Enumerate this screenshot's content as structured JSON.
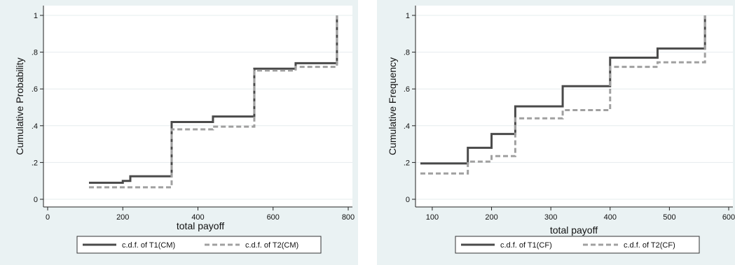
{
  "chart_data": [
    {
      "type": "line",
      "title": "",
      "xlabel": "total payoff",
      "ylabel": "Cumulative Probability",
      "xlim": [
        0,
        800
      ],
      "ylim": [
        0,
        1
      ],
      "xticks": [
        "0",
        "200",
        "400",
        "600",
        "800"
      ],
      "yticks": [
        "0",
        ".2",
        ".4",
        ".6",
        ".8",
        "1"
      ],
      "grid": "horizontal",
      "legend_position": "bottom",
      "series": [
        {
          "name": "c.d.f. of  T1(CM)",
          "style": "solid",
          "color": "#4a4a4a",
          "x": [
            110,
            200,
            220,
            330,
            440,
            550,
            660,
            770,
            770
          ],
          "y": [
            0.09,
            0.1,
            0.125,
            0.42,
            0.45,
            0.71,
            0.74,
            0.74,
            1.0
          ]
        },
        {
          "name": "c.d.f. of  T2(CM)",
          "style": "dashed",
          "color": "#a0a0a0",
          "x": [
            110,
            330,
            440,
            550,
            660,
            770,
            770
          ],
          "y": [
            0.065,
            0.38,
            0.395,
            0.7,
            0.72,
            0.72,
            1.0
          ]
        }
      ]
    },
    {
      "type": "line",
      "title": "",
      "xlabel": "total payoff",
      "ylabel": "Cumulative Frequency",
      "xlim": [
        80,
        600
      ],
      "ylim": [
        0,
        1
      ],
      "xticks": [
        "100",
        "200",
        "300",
        "400",
        "500",
        "600"
      ],
      "yticks": [
        "0",
        ".2",
        ".4",
        ".6",
        ".8",
        "1"
      ],
      "grid": "horizontal",
      "legend_position": "bottom",
      "series": [
        {
          "name": "c.d.f. of  T1(CF)",
          "style": "solid",
          "color": "#4a4a4a",
          "x": [
            80,
            160,
            200,
            240,
            320,
            400,
            480,
            560,
            560
          ],
          "y": [
            0.195,
            0.28,
            0.355,
            0.505,
            0.615,
            0.77,
            0.82,
            0.82,
            1.0
          ]
        },
        {
          "name": "c.d.f. of  T2(CF)",
          "style": "dashed",
          "color": "#a0a0a0",
          "x": [
            80,
            160,
            200,
            240,
            320,
            400,
            480,
            560,
            560
          ],
          "y": [
            0.14,
            0.205,
            0.235,
            0.44,
            0.485,
            0.72,
            0.745,
            0.745,
            1.0
          ]
        }
      ]
    }
  ]
}
